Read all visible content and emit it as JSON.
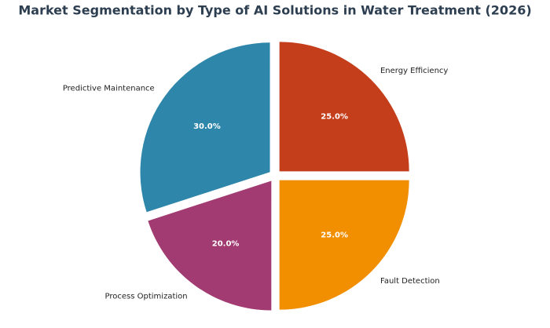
{
  "chart_data": {
    "type": "pie",
    "title": "Market Segmentation by Type of AI Solutions in Water Treatment (2026)",
    "categories": [
      "Energy Efficiency",
      "Fault Detection",
      "Process Optimization",
      "Predictive Maintenance"
    ],
    "values": [
      25,
      25,
      20,
      30
    ],
    "value_labels": [
      "25.0%",
      "25.0%",
      "20.0%",
      "30.0%"
    ],
    "colors": [
      "#c43e1c",
      "#f18f01",
      "#a23b72",
      "#2e86ab"
    ]
  }
}
